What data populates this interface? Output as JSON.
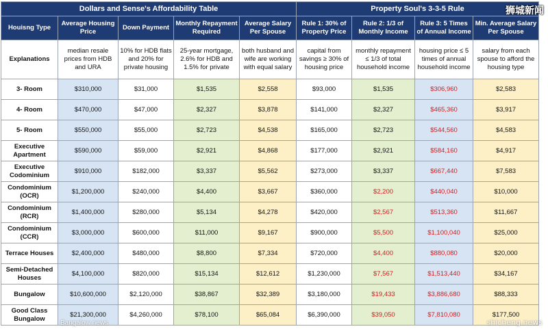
{
  "titles": {
    "left": "Dollars and Sense's Affordability Table",
    "right": "Property Soul's 3-3-5 Rule"
  },
  "headers": [
    "Houisng Type",
    "Average Housing Price",
    "Down Payment",
    "Monthly Repayment Required",
    "Average Salary Per Spouse",
    "Rule 1: 30% of Property Price",
    "Rule 2: 1/3 of Monthly Income",
    "Rule 3: 5 Times of Annual Income",
    "Min. Average Salary Per Spouse"
  ],
  "explanations": {
    "label": "Explanations",
    "cells": [
      "median resale prices from HDB and URA",
      "10% for HDB flats and 20% for private housing",
      "25-year mortgage, 2.6% for HDB and 1.5% for private",
      "both husband and wife are working with equal salary",
      "capital from savings ≥ 30% of housing price",
      "monthly repayment ≤ 1/3 of total household income",
      "housing price ≤ 5 times of annual household income",
      "salary from each spouse to afford the housing type"
    ]
  },
  "rows": [
    {
      "type": "3- Room",
      "price": "$310,000",
      "down": "$31,000",
      "repay": "$1,535",
      "salary": "$2,558",
      "rule1": "$93,000",
      "rule2": "$1,535",
      "rule2_red": false,
      "rule3": "$306,960",
      "rule3_red": true,
      "min": "$2,583"
    },
    {
      "type": "4- Room",
      "price": "$470,000",
      "down": "$47,000",
      "repay": "$2,327",
      "salary": "$3,878",
      "rule1": "$141,000",
      "rule2": "$2,327",
      "rule2_red": false,
      "rule3": "$465,360",
      "rule3_red": true,
      "min": "$3,917"
    },
    {
      "type": "5- Room",
      "price": "$550,000",
      "down": "$55,000",
      "repay": "$2,723",
      "salary": "$4,538",
      "rule1": "$165,000",
      "rule2": "$2,723",
      "rule2_red": false,
      "rule3": "$544,560",
      "rule3_red": true,
      "min": "$4,583"
    },
    {
      "type": "Executive Apartment",
      "price": "$590,000",
      "down": "$59,000",
      "repay": "$2,921",
      "salary": "$4,868",
      "rule1": "$177,000",
      "rule2": "$2,921",
      "rule2_red": false,
      "rule3": "$584,160",
      "rule3_red": true,
      "min": "$4,917"
    },
    {
      "type": "Executive Codominium",
      "price": "$910,000",
      "down": "$182,000",
      "repay": "$3,337",
      "salary": "$5,562",
      "rule1": "$273,000",
      "rule2": "$3,337",
      "rule2_red": false,
      "rule3": "$667,440",
      "rule3_red": true,
      "min": "$7,583"
    },
    {
      "type": "Condominium (OCR)",
      "price": "$1,200,000",
      "down": "$240,000",
      "repay": "$4,400",
      "salary": "$3,667",
      "rule1": "$360,000",
      "rule2": "$2,200",
      "rule2_red": true,
      "rule3": "$440,040",
      "rule3_red": true,
      "min": "$10,000"
    },
    {
      "type": "Condominium (RCR)",
      "price": "$1,400,000",
      "down": "$280,000",
      "repay": "$5,134",
      "salary": "$4,278",
      "rule1": "$420,000",
      "rule2": "$2,567",
      "rule2_red": true,
      "rule3": "$513,360",
      "rule3_red": true,
      "min": "$11,667"
    },
    {
      "type": "Condominium (CCR)",
      "price": "$3,000,000",
      "down": "$600,000",
      "repay": "$11,000",
      "salary": "$9,167",
      "rule1": "$900,000",
      "rule2": "$5,500",
      "rule2_red": true,
      "rule3": "$1,100,040",
      "rule3_red": true,
      "min": "$25,000"
    },
    {
      "type": "Terrace Houses",
      "price": "$2,400,000",
      "down": "$480,000",
      "repay": "$8,800",
      "salary": "$7,334",
      "rule1": "$720,000",
      "rule2": "$4,400",
      "rule2_red": true,
      "rule3": "$880,080",
      "rule3_red": true,
      "min": "$20,000"
    },
    {
      "type": "Semi-Detached Houses",
      "price": "$4,100,000",
      "down": "$820,000",
      "repay": "$15,134",
      "salary": "$12,612",
      "rule1": "$1,230,000",
      "rule2": "$7,567",
      "rule2_red": true,
      "rule3": "$1,513,440",
      "rule3_red": true,
      "min": "$34,167"
    },
    {
      "type": "Bungalow",
      "price": "$10,600,000",
      "down": "$2,120,000",
      "repay": "$38,867",
      "salary": "$32,389",
      "rule1": "$3,180,000",
      "rule2": "$19,433",
      "rule2_red": true,
      "rule3": "$3,886,680",
      "rule3_red": true,
      "min": "$88,333"
    },
    {
      "type": "Good Class Bungalow",
      "price": "$21,300,000",
      "down": "$4,260,000",
      "repay": "$78,100",
      "salary": "$65,084",
      "rule1": "$6,390,000",
      "rule2": "$39,050",
      "rule2_red": true,
      "rule3": "$7,810,080",
      "rule3_red": true,
      "min": "$177,500"
    }
  ],
  "watermarks": {
    "top_right": "狮城新闻",
    "bottom_right": "shicheng.news",
    "bottom_left": "Bangalow news"
  }
}
